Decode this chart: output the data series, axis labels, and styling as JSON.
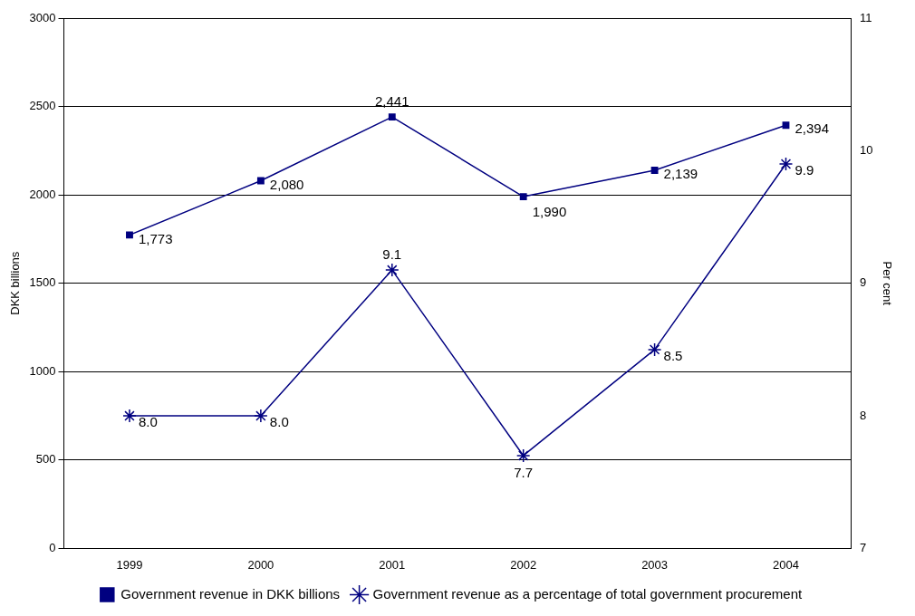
{
  "chart_data": {
    "type": "line",
    "categories": [
      "1999",
      "2000",
      "2001",
      "2002",
      "2003",
      "2004"
    ],
    "ylabel": "DKK billions",
    "y2label": "Per cent",
    "ylim": [
      0,
      3000
    ],
    "yticks": [
      0,
      500,
      1000,
      1500,
      2000,
      2500,
      3000
    ],
    "y2lim": [
      7,
      11
    ],
    "y2ticks": [
      7,
      8,
      9,
      10,
      11
    ],
    "grid": "y",
    "legend": "bottom",
    "line_style": "solid",
    "series": [
      {
        "name": "Government revenue in DKK billions",
        "color": "#000080",
        "marker": "square",
        "values": [
          1773,
          2080,
          2441,
          1990,
          2139,
          2394
        ],
        "value_labels": [
          "1,773",
          "2,080",
          "2,441",
          "1,990",
          "2,139",
          "2,394"
        ]
      },
      {
        "name": "Government revenue as a percentage of total government procurement",
        "color": "#000080",
        "marker": "cross",
        "axis": "y2",
        "values": [
          8.0,
          8.0,
          9.1,
          7.7,
          8.5,
          9.9
        ],
        "value_labels": [
          "8.0",
          "8.0",
          "9.1",
          "7.7",
          "8.5",
          "9.9"
        ]
      }
    ]
  }
}
